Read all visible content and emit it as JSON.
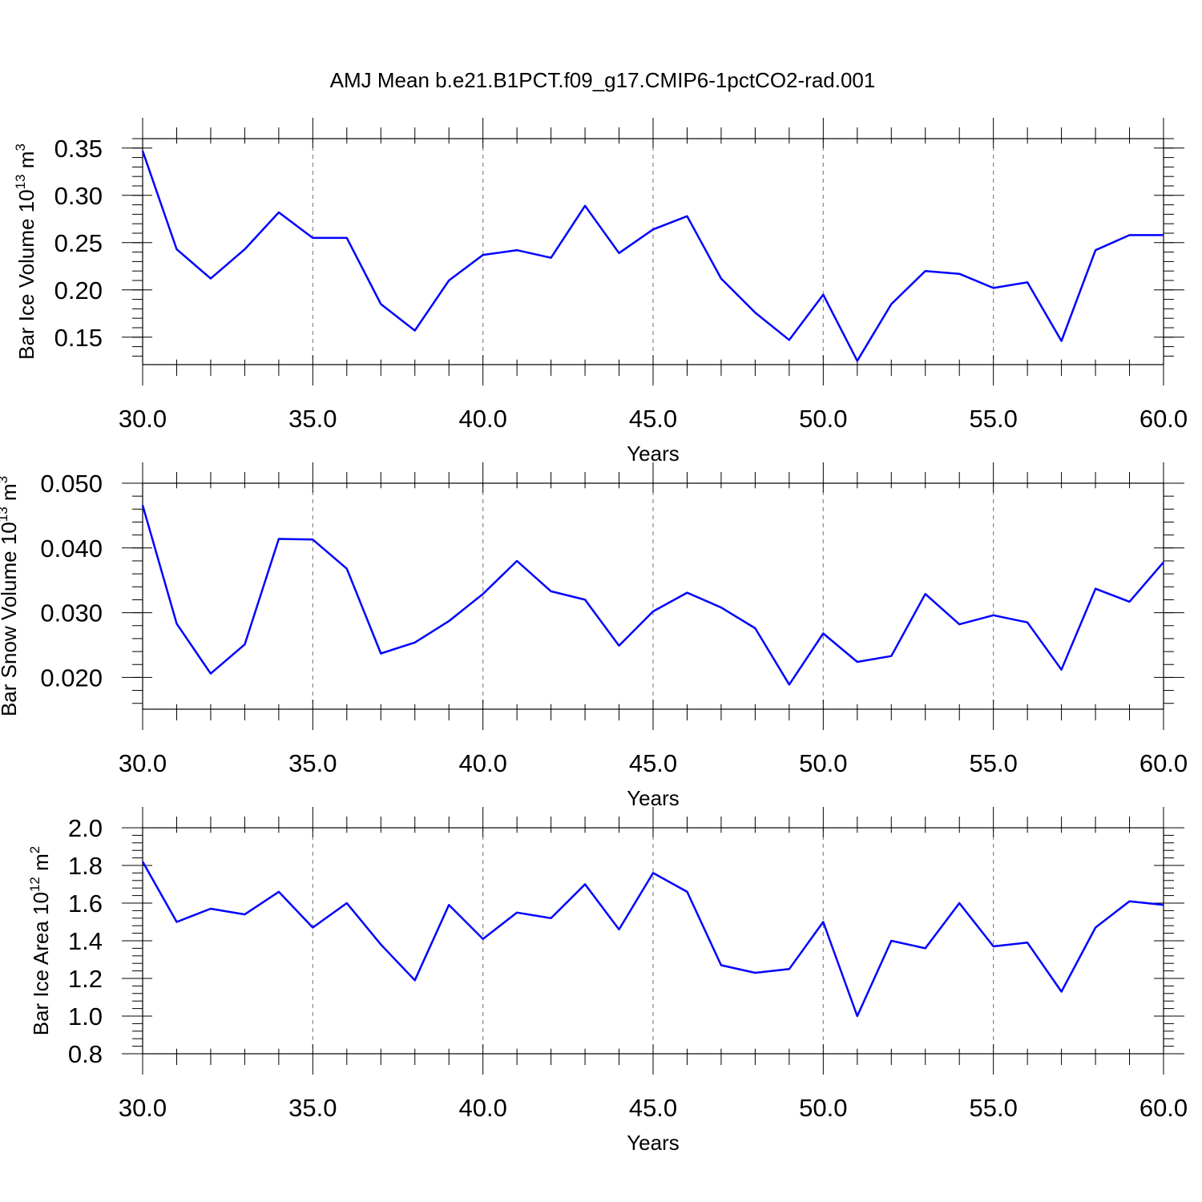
{
  "title": "AMJ Mean b.e21.B1PCT.f09_g17.CMIP6-1pctCO2-rad.001",
  "colors": {
    "series": "#0000ff",
    "frame": "#000000",
    "grid": "#888888"
  },
  "chart_data": [
    {
      "type": "line",
      "ylabel": "Bar Ice Volume 10",
      "ylabel_exp": "13",
      "ylabel_unit": " m",
      "ylabel_unit_exp": "3",
      "xlabel": "Years",
      "xlim": [
        30,
        60
      ],
      "ylim": [
        0.121,
        0.36
      ],
      "x_ticks": [
        30,
        35,
        40,
        45,
        50,
        55,
        60
      ],
      "x_tick_labels": [
        "30.0",
        "35.0",
        "40.0",
        "45.0",
        "50.0",
        "55.0",
        "60.0"
      ],
      "y_ticks": [
        0.15,
        0.2,
        0.25,
        0.3,
        0.35
      ],
      "y_tick_labels": [
        "0.15",
        "0.20",
        "0.25",
        "0.30",
        "0.35"
      ],
      "grid": "x dashed",
      "series": [
        {
          "x": [
            30,
            31,
            32,
            33,
            34,
            35,
            36,
            37,
            38,
            39,
            40,
            41,
            42,
            43,
            44,
            45,
            46,
            47,
            48,
            49,
            50,
            51,
            52,
            53,
            54,
            55,
            56,
            57,
            58,
            59,
            60
          ],
          "values": [
            0.347,
            0.243,
            0.212,
            0.243,
            0.282,
            0.255,
            0.255,
            0.185,
            0.157,
            0.21,
            0.237,
            0.242,
            0.234,
            0.289,
            0.239,
            0.264,
            0.278,
            0.212,
            0.176,
            0.147,
            0.195,
            0.125,
            0.185,
            0.22,
            0.217,
            0.202,
            0.208,
            0.146,
            0.242,
            0.258,
            0.258
          ]
        }
      ]
    },
    {
      "type": "line",
      "ylabel": "Bar Snow Volume 10",
      "ylabel_exp": "13",
      "ylabel_unit": " m",
      "ylabel_unit_exp": "3",
      "xlabel": "Years",
      "xlim": [
        30,
        60
      ],
      "ylim": [
        0.0151,
        0.05
      ],
      "x_ticks": [
        30,
        35,
        40,
        45,
        50,
        55,
        60
      ],
      "x_tick_labels": [
        "30.0",
        "35.0",
        "40.0",
        "45.0",
        "50.0",
        "55.0",
        "60.0"
      ],
      "y_ticks": [
        0.02,
        0.03,
        0.04,
        0.05
      ],
      "y_tick_labels": [
        "0.020",
        "0.030",
        "0.040",
        "0.050"
      ],
      "grid": "x dashed",
      "series": [
        {
          "x": [
            30,
            31,
            32,
            33,
            34,
            35,
            36,
            37,
            38,
            39,
            40,
            41,
            42,
            43,
            44,
            45,
            46,
            47,
            48,
            49,
            50,
            51,
            52,
            53,
            54,
            55,
            56,
            57,
            58,
            59,
            60
          ],
          "values": [
            0.0466,
            0.0283,
            0.0206,
            0.0251,
            0.0414,
            0.0413,
            0.0368,
            0.0237,
            0.0254,
            0.0287,
            0.0329,
            0.038,
            0.0333,
            0.032,
            0.0249,
            0.0302,
            0.0331,
            0.0308,
            0.0276,
            0.0189,
            0.0268,
            0.0224,
            0.0233,
            0.0329,
            0.0282,
            0.0296,
            0.0285,
            0.0212,
            0.0337,
            0.0317,
            0.0378
          ]
        }
      ]
    },
    {
      "type": "line",
      "ylabel": "Bar Ice Area 10",
      "ylabel_exp": "12",
      "ylabel_unit": " m",
      "ylabel_unit_exp": "2",
      "xlabel": "Years",
      "xlim": [
        30,
        60
      ],
      "ylim": [
        0.8,
        2.0
      ],
      "x_ticks": [
        30,
        35,
        40,
        45,
        50,
        55,
        60
      ],
      "x_tick_labels": [
        "30.0",
        "35.0",
        "40.0",
        "45.0",
        "50.0",
        "55.0",
        "60.0"
      ],
      "y_ticks": [
        0.8,
        1.0,
        1.2,
        1.4,
        1.6,
        1.8,
        2.0
      ],
      "y_tick_labels": [
        "0.8",
        "1.0",
        "1.2",
        "1.4",
        "1.6",
        "1.8",
        "2.0"
      ],
      "grid": "x dashed",
      "series": [
        {
          "x": [
            30,
            31,
            32,
            33,
            34,
            35,
            36,
            37,
            38,
            39,
            40,
            41,
            42,
            43,
            44,
            45,
            46,
            47,
            48,
            49,
            50,
            51,
            52,
            53,
            54,
            55,
            56,
            57,
            58,
            59,
            60
          ],
          "values": [
            1.82,
            1.5,
            1.57,
            1.54,
            1.66,
            1.47,
            1.6,
            1.38,
            1.19,
            1.59,
            1.41,
            1.55,
            1.52,
            1.7,
            1.46,
            1.76,
            1.66,
            1.27,
            1.23,
            1.25,
            1.5,
            1.0,
            1.4,
            1.36,
            1.6,
            1.37,
            1.39,
            1.13,
            1.47,
            1.61,
            1.59
          ]
        }
      ]
    }
  ]
}
